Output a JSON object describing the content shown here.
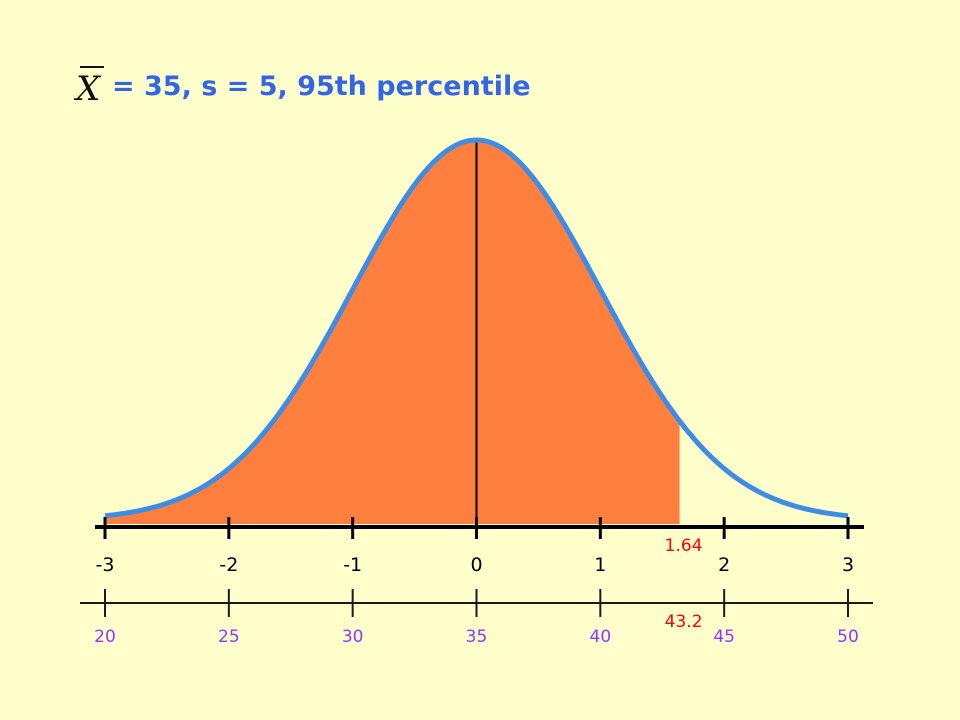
{
  "title": {
    "symbol": "X",
    "text": "= 35, s = 5, 95th percentile"
  },
  "colors": {
    "background": "#FFFFCC",
    "curve": "#3D8CE6",
    "shade": "#FF7F3F",
    "title": "#3366E6",
    "z_axis": "#000000",
    "x_axis": "#1A1A1A",
    "x_labels": "#9933FF",
    "marker_labels": "#FF0000"
  },
  "chart_data": {
    "type": "area",
    "distribution": "normal",
    "mean": 35,
    "sd": 5,
    "percentile": 95,
    "shaded_region": {
      "z_from": -3,
      "z_to": 1.64
    },
    "z_axis": {
      "range": [
        -3,
        3
      ],
      "ticks": [
        -3,
        -2,
        -1,
        0,
        1,
        2,
        3
      ],
      "tick_labels": [
        "-3",
        "-2",
        "-1",
        "0",
        "1",
        "2",
        "3"
      ]
    },
    "x_axis": {
      "range": [
        20,
        50
      ],
      "ticks": [
        20,
        25,
        30,
        35,
        40,
        45,
        50
      ],
      "tick_labels": [
        "20",
        "25",
        "30",
        "35",
        "40",
        "45",
        "50"
      ]
    },
    "mean_line": {
      "z": 0
    },
    "markers": [
      {
        "axis": "z",
        "value": 1.64,
        "label": "1.64"
      },
      {
        "axis": "x",
        "value": 43.2,
        "label": "43.2"
      }
    ]
  }
}
